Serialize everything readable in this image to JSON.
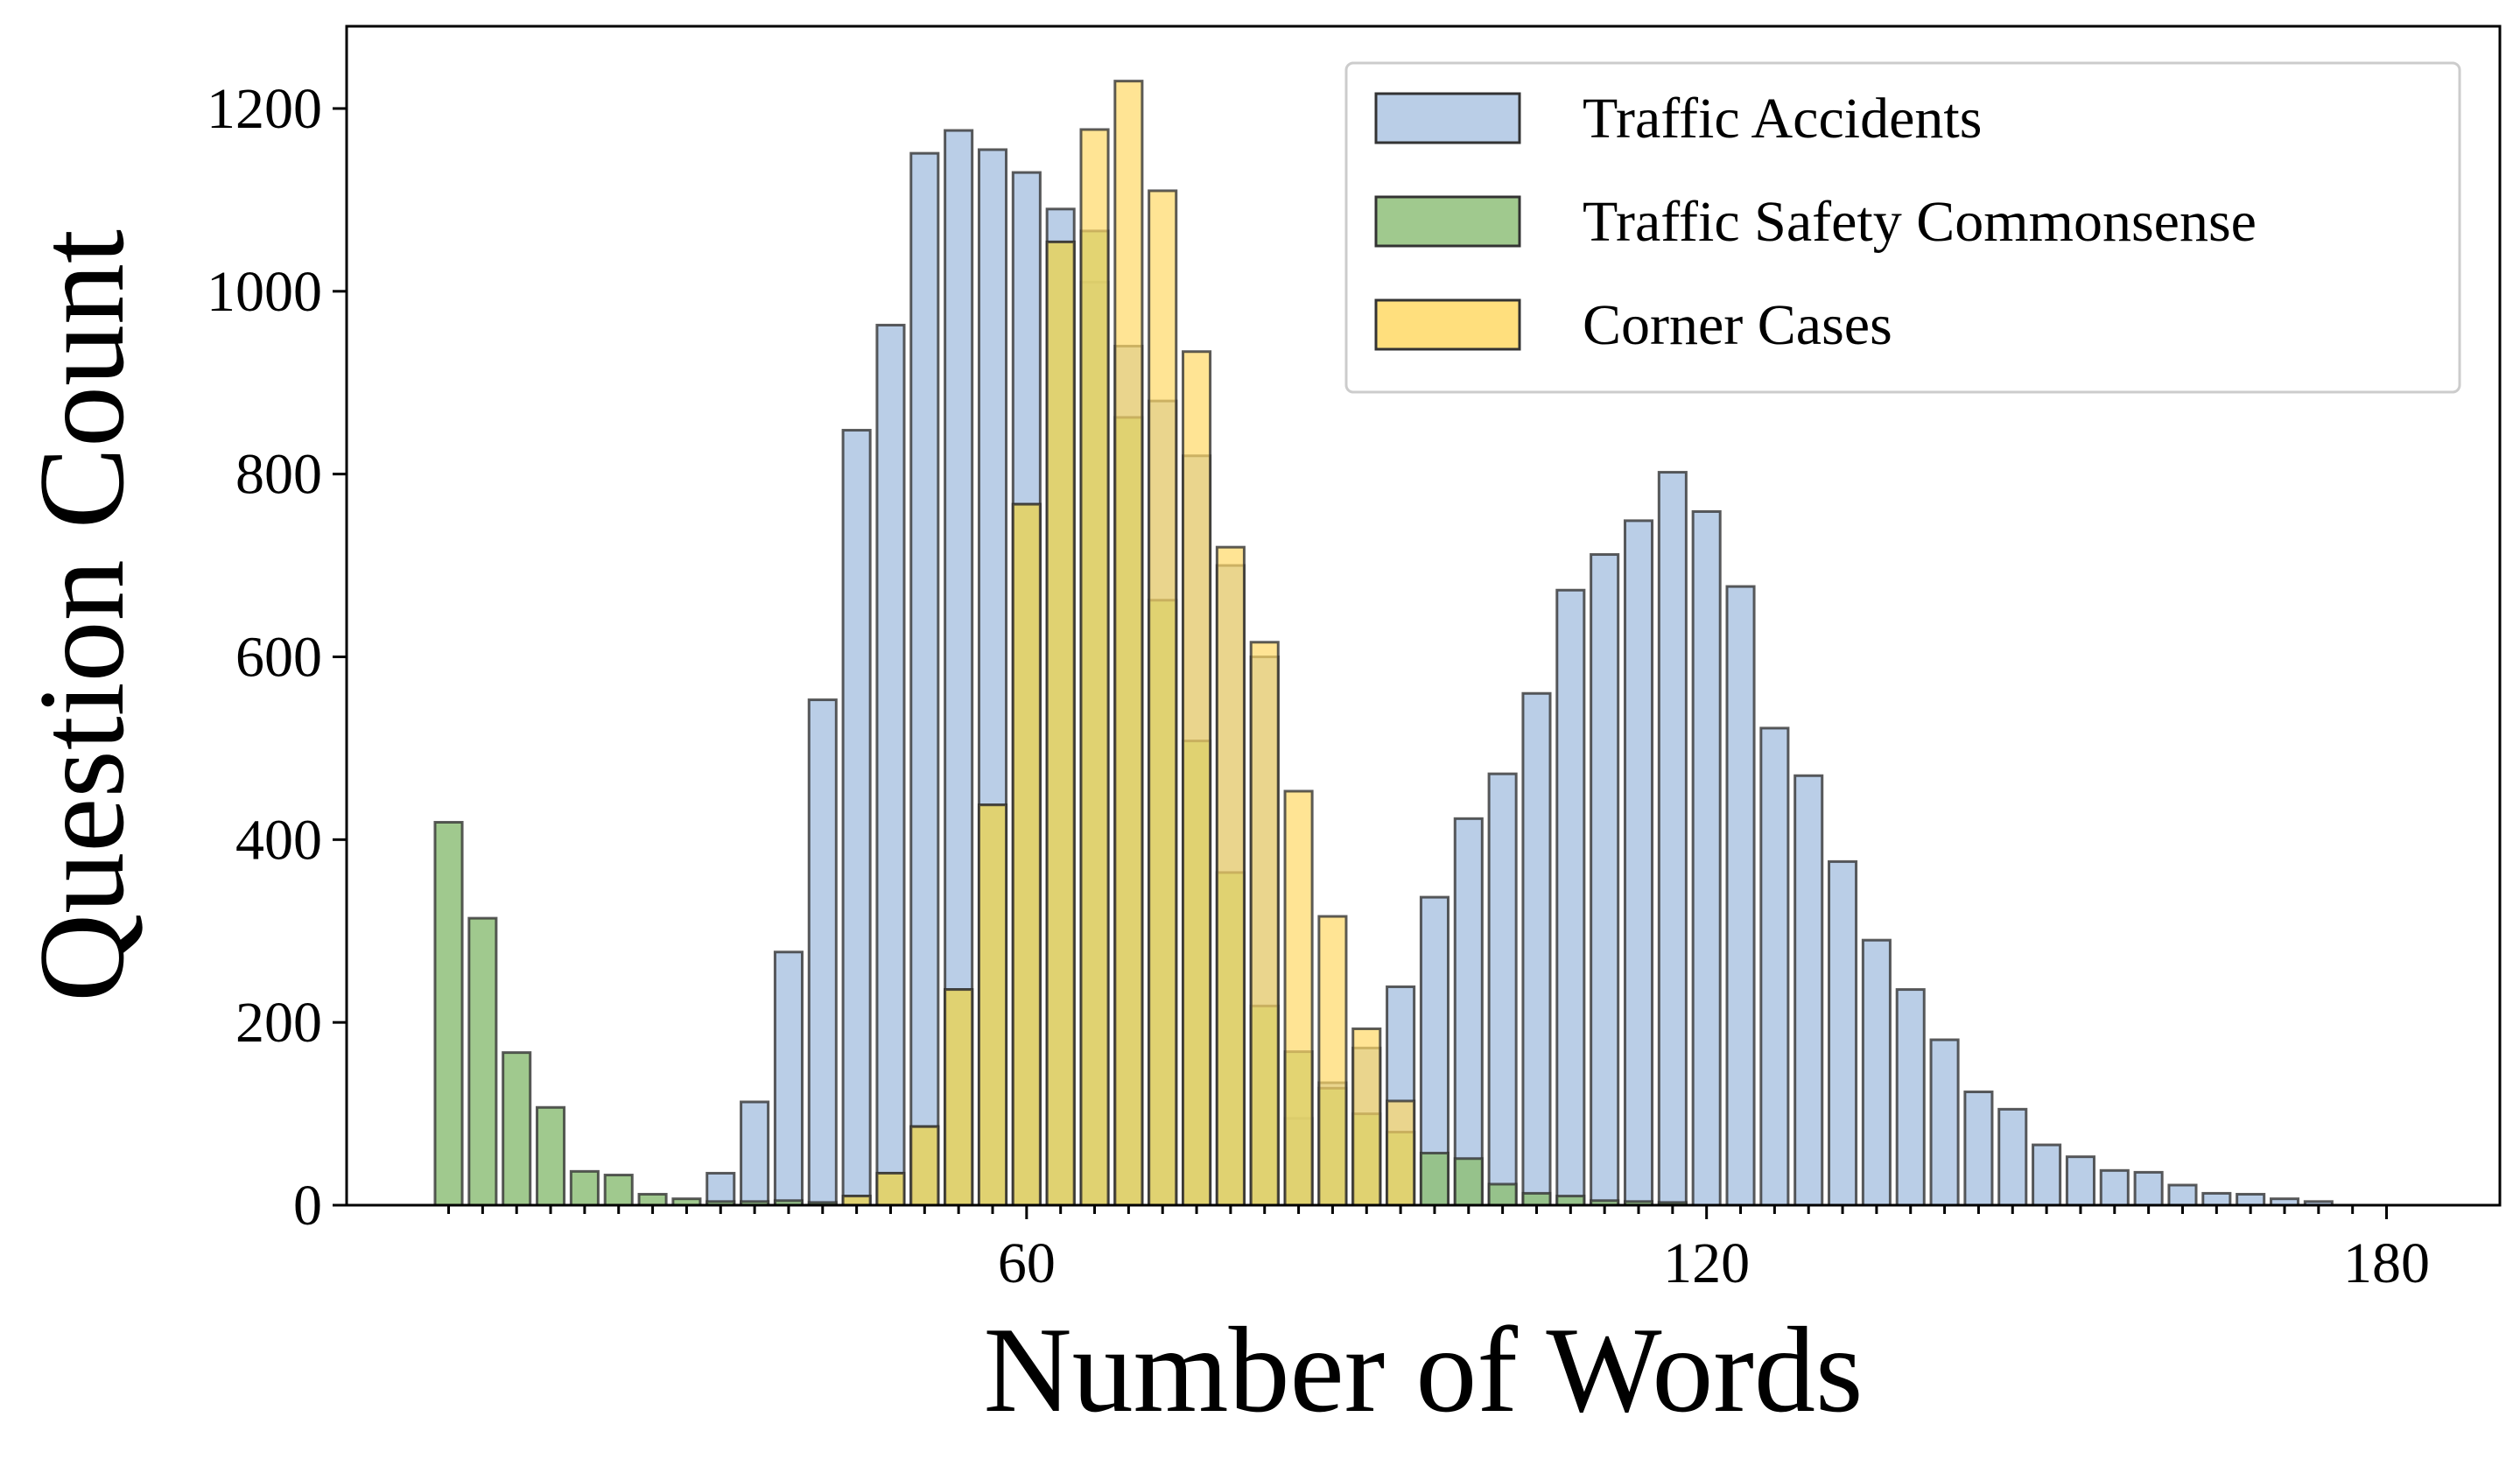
{
  "chart_data": {
    "type": "bar",
    "xlabel": "Number of Words",
    "ylabel": "Question Count",
    "xlim": [
      0,
      190
    ],
    "ylim": [
      0,
      1290
    ],
    "xticks": [
      60,
      120,
      180
    ],
    "yticks": [
      0,
      200,
      400,
      600,
      800,
      1000,
      1200
    ],
    "grid": false,
    "legend_position": "top-right",
    "bar_width": 2.4,
    "series": [
      {
        "name": "Traffic Accidents",
        "color": "#aec6e3",
        "points": [
          {
            "x": 33,
            "y": 35
          },
          {
            "x": 36,
            "y": 113
          },
          {
            "x": 39,
            "y": 277
          },
          {
            "x": 42,
            "y": 553
          },
          {
            "x": 45,
            "y": 848
          },
          {
            "x": 48,
            "y": 963
          },
          {
            "x": 51,
            "y": 1151
          },
          {
            "x": 54,
            "y": 1176
          },
          {
            "x": 57,
            "y": 1155
          },
          {
            "x": 60,
            "y": 1130
          },
          {
            "x": 63,
            "y": 1090
          },
          {
            "x": 66,
            "y": 1010
          },
          {
            "x": 69,
            "y": 940
          },
          {
            "x": 72,
            "y": 880
          },
          {
            "x": 75,
            "y": 820
          },
          {
            "x": 78,
            "y": 700
          },
          {
            "x": 81,
            "y": 600
          },
          {
            "x": 84,
            "y": 95
          },
          {
            "x": 87,
            "y": 134
          },
          {
            "x": 90,
            "y": 172
          },
          {
            "x": 93,
            "y": 239
          },
          {
            "x": 96,
            "y": 337
          },
          {
            "x": 99,
            "y": 423
          },
          {
            "x": 102,
            "y": 472
          },
          {
            "x": 105,
            "y": 560
          },
          {
            "x": 108,
            "y": 673
          },
          {
            "x": 111,
            "y": 712
          },
          {
            "x": 114,
            "y": 749
          },
          {
            "x": 117,
            "y": 802
          },
          {
            "x": 120,
            "y": 759
          },
          {
            "x": 123,
            "y": 677
          },
          {
            "x": 126,
            "y": 522
          },
          {
            "x": 129,
            "y": 470
          },
          {
            "x": 132,
            "y": 376
          },
          {
            "x": 135,
            "y": 290
          },
          {
            "x": 138,
            "y": 236
          },
          {
            "x": 141,
            "y": 181
          },
          {
            "x": 144,
            "y": 124
          },
          {
            "x": 147,
            "y": 105
          },
          {
            "x": 150,
            "y": 66
          },
          {
            "x": 153,
            "y": 53
          },
          {
            "x": 156,
            "y": 38
          },
          {
            "x": 159,
            "y": 36
          },
          {
            "x": 162,
            "y": 22
          },
          {
            "x": 165,
            "y": 13
          },
          {
            "x": 168,
            "y": 12
          },
          {
            "x": 171,
            "y": 7
          },
          {
            "x": 174,
            "y": 4
          }
        ]
      },
      {
        "name": "Traffic Safety Commonsense",
        "color": "#8fbf7a",
        "points": [
          {
            "x": 9,
            "y": 419
          },
          {
            "x": 12,
            "y": 314
          },
          {
            "x": 15,
            "y": 167
          },
          {
            "x": 18,
            "y": 107
          },
          {
            "x": 21,
            "y": 37
          },
          {
            "x": 24,
            "y": 33
          },
          {
            "x": 27,
            "y": 12
          },
          {
            "x": 30,
            "y": 7
          },
          {
            "x": 33,
            "y": 4
          },
          {
            "x": 36,
            "y": 4
          },
          {
            "x": 39,
            "y": 5
          },
          {
            "x": 42,
            "y": 3
          },
          {
            "x": 45,
            "y": 10
          },
          {
            "x": 48,
            "y": 35
          },
          {
            "x": 51,
            "y": 86
          },
          {
            "x": 54,
            "y": 236
          },
          {
            "x": 57,
            "y": 438
          },
          {
            "x": 60,
            "y": 767
          },
          {
            "x": 63,
            "y": 1054
          },
          {
            "x": 66,
            "y": 1066
          },
          {
            "x": 69,
            "y": 862
          },
          {
            "x": 72,
            "y": 662
          },
          {
            "x": 75,
            "y": 508
          },
          {
            "x": 78,
            "y": 364
          },
          {
            "x": 81,
            "y": 218
          },
          {
            "x": 84,
            "y": 168
          },
          {
            "x": 87,
            "y": 128
          },
          {
            "x": 90,
            "y": 100
          },
          {
            "x": 93,
            "y": 80
          },
          {
            "x": 96,
            "y": 57
          },
          {
            "x": 99,
            "y": 51
          },
          {
            "x": 102,
            "y": 23
          },
          {
            "x": 105,
            "y": 13
          },
          {
            "x": 108,
            "y": 10
          },
          {
            "x": 111,
            "y": 5
          },
          {
            "x": 114,
            "y": 4
          },
          {
            "x": 117,
            "y": 3
          }
        ]
      },
      {
        "name": "Corner Cases",
        "color": "#ffd966",
        "points": [
          {
            "x": 45,
            "y": 10
          },
          {
            "x": 48,
            "y": 35
          },
          {
            "x": 51,
            "y": 86
          },
          {
            "x": 54,
            "y": 236
          },
          {
            "x": 57,
            "y": 438
          },
          {
            "x": 60,
            "y": 767
          },
          {
            "x": 63,
            "y": 1054
          },
          {
            "x": 66,
            "y": 1177
          },
          {
            "x": 69,
            "y": 1230
          },
          {
            "x": 72,
            "y": 1110
          },
          {
            "x": 75,
            "y": 934
          },
          {
            "x": 78,
            "y": 720
          },
          {
            "x": 81,
            "y": 616
          },
          {
            "x": 84,
            "y": 453
          },
          {
            "x": 87,
            "y": 316
          },
          {
            "x": 90,
            "y": 193
          },
          {
            "x": 93,
            "y": 114
          }
        ]
      }
    ]
  }
}
